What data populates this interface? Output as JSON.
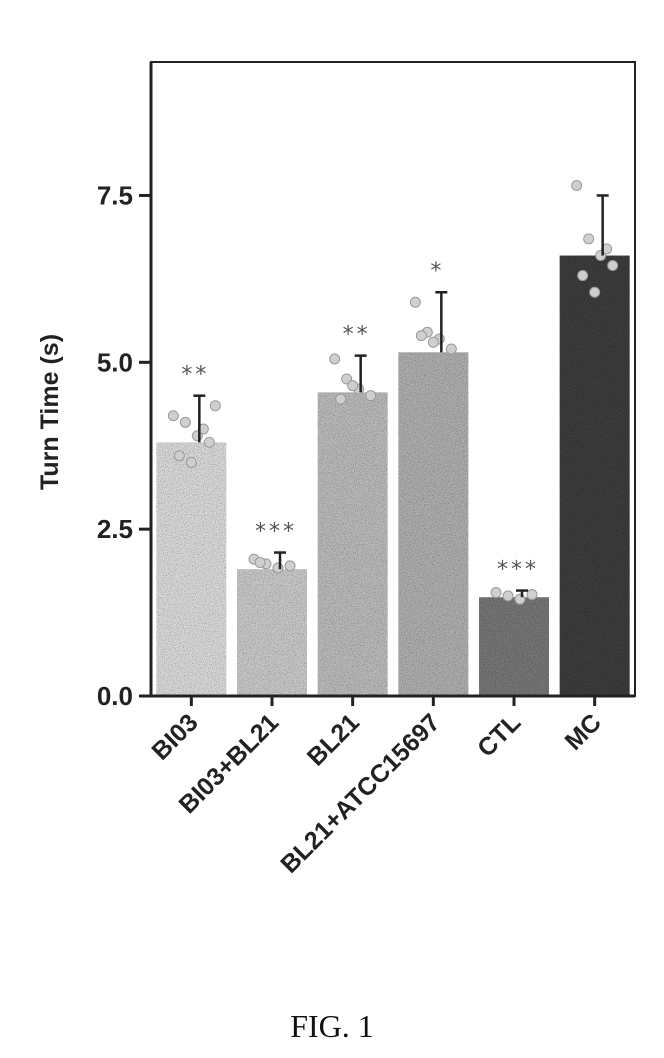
{
  "chart_data": {
    "type": "bar",
    "ylabel": "Turn Time (s)",
    "yticks": [
      "0.0",
      "2.5",
      "5.0",
      "7.5"
    ],
    "ylim": [
      0,
      9.5
    ],
    "categories": [
      "BI03",
      "BI03+BL21",
      "BL21",
      "BL21+ATCC15697",
      "CTL",
      "MC"
    ],
    "values": [
      3.8,
      1.9,
      4.55,
      5.15,
      1.48,
      6.6
    ],
    "errors": [
      0.7,
      0.25,
      0.55,
      0.9,
      0.1,
      0.9
    ],
    "significance": [
      "**",
      "***",
      "**",
      "*",
      "***",
      ""
    ],
    "points": [
      [
        4.2,
        4.1,
        3.9,
        3.8,
        3.6,
        3.5,
        4.0,
        4.35
      ],
      [
        2.05,
        1.98,
        1.92,
        1.95,
        2.0
      ],
      [
        5.05,
        4.75,
        4.6,
        4.5,
        4.45,
        4.65
      ],
      [
        5.9,
        5.45,
        5.35,
        5.2,
        5.4,
        5.3
      ],
      [
        1.55,
        1.5,
        1.45,
        1.52
      ],
      [
        7.65,
        6.85,
        6.6,
        6.45,
        6.3,
        6.05,
        6.7
      ]
    ],
    "bar_colors": [
      "#d8d8d8",
      "#c7c7c7",
      "#b9b9b9",
      "#adadad",
      "#767676",
      "#3d3d3d"
    ],
    "grid": false
  },
  "caption": "FIG. 1"
}
